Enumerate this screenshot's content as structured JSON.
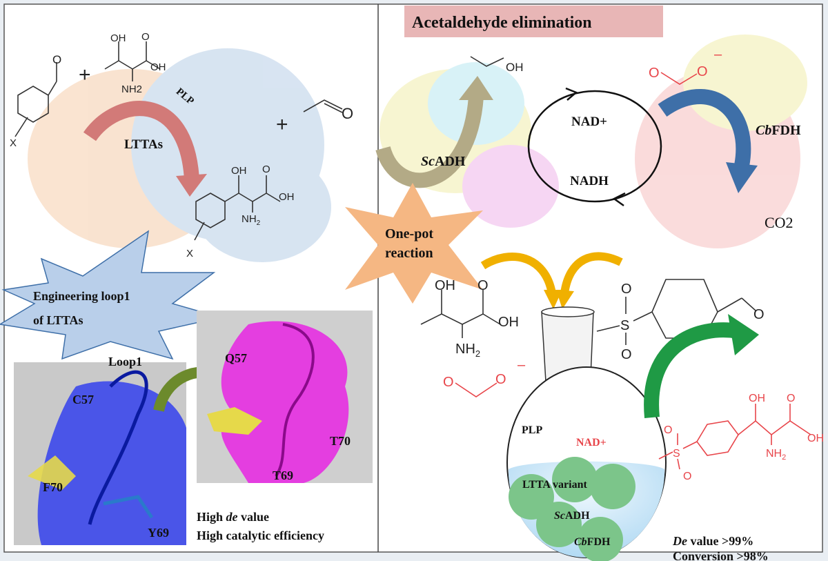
{
  "left_panel": {
    "reaction": {
      "enzyme_label": "LTTAs",
      "cofactor_label": "PLP",
      "plus": "+",
      "substituent": "X",
      "atoms": {
        "oh": "OH",
        "o": "O",
        "nh2": "NH2",
        "nh": "NH",
        "sub2": "2"
      }
    },
    "engineering_callout": {
      "line1": "Engineering loop1",
      "line2": "of LTTAs"
    },
    "structure_labels": {
      "loop1": "Loop1",
      "c57": "C57",
      "f70": "F70",
      "y69": "Y69",
      "q57": "Q57",
      "t70": "T70",
      "t69": "T69"
    },
    "outcome": {
      "line1_prefix": "High ",
      "line1_italic": "de",
      "line1_suffix": " value",
      "line2": "High  catalytic efficiency"
    }
  },
  "right_panel": {
    "title": "Acetaldehyde elimination",
    "cycle": {
      "nad_plus": "NAD+",
      "nadh": "NADH"
    },
    "enzymes": {
      "scadh_italic": "Sc",
      "scadh_rest": "ADH",
      "cbfdh_italic": "Cb",
      "cbfdh_rest": "FDH"
    },
    "co2": "CO2",
    "one_pot": {
      "line1": "One-pot",
      "line2": "reaction"
    },
    "flask": {
      "plp": "PLP",
      "nad_plus": "NAD+",
      "ltta_variant": "LTTA variant",
      "scadh_italic": "Sc",
      "scadh_rest": "ADH",
      "cbfdh_italic": "Cb",
      "cbfdh_rest": "FDH"
    },
    "atoms": {
      "oh": "OH",
      "o": "O",
      "s": "S",
      "nh": "NH",
      "sub2": "2",
      "minus": "–"
    },
    "results": {
      "de_italic": "De",
      "de_rest": " value >99%",
      "conversion": "Conversion >98%"
    }
  },
  "colors": {
    "ltta_arrow": "#d27a78",
    "scadh_arrow": "#b3aa86",
    "cbfdh_arrow": "#3e6fa8",
    "product_red": "#e8454a",
    "title_box": "#e8b6b6",
    "callout_blue": "#b9cfea",
    "one_pot_orange": "#f5b783",
    "green_arrow": "#1f9a45",
    "yellow_arrow": "#f0b000"
  }
}
